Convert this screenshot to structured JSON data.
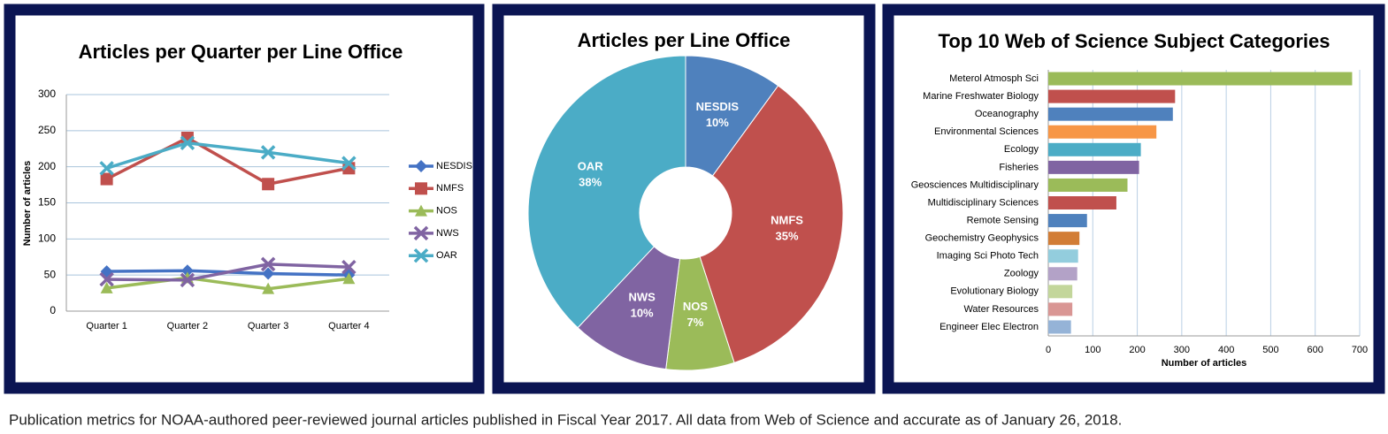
{
  "chart_data": [
    {
      "type": "line",
      "title": "Articles per Quarter per Line Office",
      "y_label": "Number of articles",
      "categories": [
        "Quarter 1",
        "Quarter 2",
        "Quarter 3",
        "Quarter 4"
      ],
      "series": [
        {
          "name": "NESDIS",
          "color": "#4472c4",
          "marker": "diamond",
          "values": [
            55,
            56,
            52,
            50
          ]
        },
        {
          "name": "NMFS",
          "color": "#c0504d",
          "marker": "square",
          "values": [
            183,
            240,
            176,
            198
          ]
        },
        {
          "name": "NOS",
          "color": "#9bbb59",
          "marker": "triangle",
          "values": [
            32,
            46,
            31,
            45
          ]
        },
        {
          "name": "NWS",
          "color": "#8064a2",
          "marker": "x",
          "values": [
            44,
            43,
            65,
            61
          ]
        },
        {
          "name": "OAR",
          "color": "#4bacc6",
          "marker": "x",
          "values": [
            198,
            233,
            220,
            205
          ]
        }
      ],
      "ylim": [
        0,
        300
      ],
      "yticks": [
        0,
        50,
        100,
        150,
        200,
        250,
        300
      ],
      "grid": true,
      "legend": "right"
    },
    {
      "type": "pie",
      "title": "Articles per Line Office",
      "categories": [
        "NESDIS",
        "NMFS",
        "NOS",
        "NWS",
        "OAR"
      ],
      "values": [
        10,
        35,
        7,
        10,
        38
      ],
      "value_labels": [
        "10%",
        "35%",
        "7%",
        "10%",
        "38%"
      ],
      "colors": [
        "#4f81bd",
        "#c0504d",
        "#9bbb59",
        "#8064a2",
        "#4bacc6"
      ],
      "donut": true
    },
    {
      "type": "barh",
      "title": "Top 10 Web of Science Subject Categories",
      "x_label": "Number of articles",
      "categories": [
        "Meterol Atmosph Sci",
        "Marine Freshwater Biology",
        "Oceanography",
        "Environmental Sciences",
        "Ecology",
        "Fisheries",
        "Geosciences Multidisciplinary",
        "Multidisciplinary Sciences",
        "Remote Sensing",
        "Geochemistry Geophysics",
        "Imaging Sci Photo Tech",
        "Zoology",
        "Evolutionary Biology",
        "Water Resources",
        "Engineer Elec Electron"
      ],
      "values": [
        683,
        285,
        280,
        243,
        208,
        204,
        178,
        153,
        87,
        70,
        67,
        65,
        54,
        54,
        51
      ],
      "colors": [
        "#9bbb59",
        "#c0504d",
        "#4f81bd",
        "#f79646",
        "#4bacc6",
        "#8064a2",
        "#9bbb59",
        "#c0504d",
        "#4f81bd",
        "#d27d36",
        "#93cddd",
        "#b3a2c7",
        "#c3d69b",
        "#d99694",
        "#95b3d7"
      ],
      "xlim": [
        0,
        700
      ],
      "xticks": [
        0,
        100,
        200,
        300,
        400,
        500,
        600,
        700
      ],
      "grid": true
    }
  ],
  "caption": "Publication metrics for NOAA-authored peer-reviewed journal articles published in Fiscal Year 2017. All data from Web of Science and accurate as of January 26, 2018."
}
